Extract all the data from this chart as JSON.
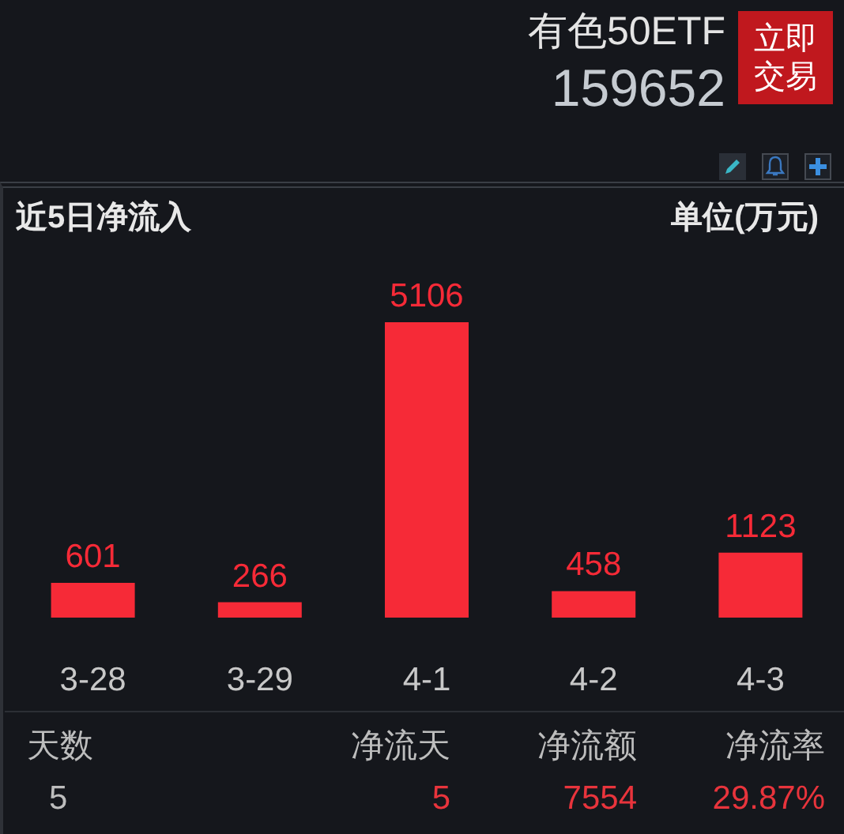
{
  "chart_data": {
    "type": "bar",
    "title": "近5日净流入",
    "ylabel": "单位(万元)",
    "categories": [
      "3-28",
      "3-29",
      "4-1",
      "4-2",
      "4-3"
    ],
    "values": [
      601,
      266,
      5106,
      458,
      1123
    ],
    "color": "#f62a37",
    "data_labels": true,
    "tick_labels": "x",
    "annotations": [
      "有色50ETF",
      "159652",
      "立即交易",
      "天数",
      "净流天",
      "净流额",
      "净流率",
      "5",
      "5",
      "7554",
      "29.87%"
    ]
  }
}
